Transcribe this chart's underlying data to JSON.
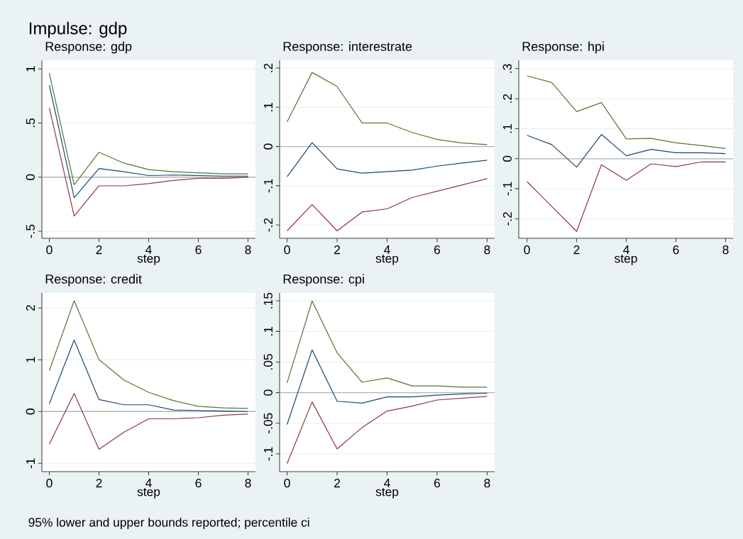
{
  "chart_data": [
    {
      "type": "line",
      "title": "Response: gdp",
      "xlabel": "step",
      "annotations": [
        "Impulse: gdp"
      ],
      "x": [
        0,
        1,
        2,
        3,
        4,
        5,
        6,
        7,
        8
      ],
      "xlim": [
        -0.3,
        8.3
      ],
      "xticks": [
        0,
        2,
        4,
        6,
        8
      ],
      "ylim": [
        -0.565,
        1.08
      ],
      "yticks": [
        {
          "value": -0.5,
          "label": "-.5"
        },
        0,
        {
          "value": 0.5,
          "label": ".5"
        },
        1
      ],
      "grid": "y",
      "ref_lines": [
        {
          "axis": "y",
          "value": 0,
          "color": "#b4b4b4"
        }
      ],
      "series": [
        {
          "color": "#1a476f",
          "values": [
            0.85,
            -0.19,
            0.08,
            0.05,
            0.015,
            0.02,
            0.015,
            0.01,
            0.01
          ]
        },
        {
          "color": "#90353b",
          "values": [
            0.64,
            -0.36,
            -0.08,
            -0.08,
            -0.06,
            -0.03,
            -0.01,
            -0.01,
            0
          ]
        },
        {
          "color": "#55752f",
          "values": [
            0.96,
            -0.07,
            0.23,
            0.13,
            0.07,
            0.05,
            0.04,
            0.03,
            0.03
          ]
        }
      ]
    },
    {
      "type": "line",
      "title": "Response: interestrate",
      "xlabel": "step",
      "x": [
        0,
        1,
        2,
        3,
        4,
        5,
        6,
        7,
        8
      ],
      "xlim": [
        -0.3,
        8.3
      ],
      "xticks": [
        0,
        2,
        4,
        6,
        8
      ],
      "ylim": [
        -0.234,
        0.22
      ],
      "yticks": [
        {
          "value": -0.2,
          "label": "-.2"
        },
        {
          "value": -0.1,
          "label": "-.1"
        },
        0,
        {
          "value": 0.1,
          "label": ".1"
        },
        {
          "value": 0.2,
          "label": ".2"
        }
      ],
      "grid": "y",
      "ref_lines": [
        {
          "axis": "y",
          "value": 0,
          "color": "#b4b4b4"
        }
      ],
      "series": [
        {
          "color": "#1a476f",
          "values": [
            -0.077,
            0.01,
            -0.057,
            -0.068,
            -0.064,
            -0.06,
            -0.05,
            -0.042,
            -0.035
          ]
        },
        {
          "color": "#90353b",
          "values": [
            -0.215,
            -0.148,
            -0.215,
            -0.167,
            -0.159,
            -0.13,
            -0.114,
            -0.098,
            -0.082
          ]
        },
        {
          "color": "#55752f",
          "values": [
            0.063,
            0.189,
            0.153,
            0.06,
            0.06,
            0.036,
            0.018,
            0.009,
            0.005
          ]
        }
      ]
    },
    {
      "type": "line",
      "title": "Response: hpi",
      "xlabel": "step",
      "x": [
        0,
        1,
        2,
        3,
        4,
        5,
        6,
        7,
        8
      ],
      "xlim": [
        -0.33,
        8.3
      ],
      "xticks": [
        0,
        2,
        4,
        6,
        8
      ],
      "ylim": [
        -0.265,
        0.328
      ],
      "yticks": [
        {
          "value": -0.2,
          "label": "-.2"
        },
        {
          "value": -0.1,
          "label": "-.1"
        },
        0,
        {
          "value": 0.1,
          "label": ".1"
        },
        {
          "value": 0.2,
          "label": ".2"
        },
        {
          "value": 0.3,
          "label": ".3"
        }
      ],
      "grid": "y",
      "ref_lines": [
        {
          "axis": "y",
          "value": 0,
          "color": "#b4b4b4"
        }
      ],
      "series": [
        {
          "color": "#1a476f",
          "values": [
            0.078,
            0.047,
            -0.028,
            0.081,
            0.01,
            0.031,
            0.02,
            0.02,
            0.017
          ]
        },
        {
          "color": "#90353b",
          "values": [
            -0.076,
            -0.159,
            -0.242,
            -0.02,
            -0.072,
            -0.017,
            -0.026,
            -0.011,
            -0.011
          ]
        },
        {
          "color": "#55752f",
          "values": [
            0.276,
            0.254,
            0.157,
            0.187,
            0.066,
            0.068,
            0.053,
            0.044,
            0.034
          ]
        }
      ]
    },
    {
      "type": "line",
      "title": "Response: credit",
      "xlabel": "step",
      "annotations": [
        "95% lower and upper bounds reported; percentile ci"
      ],
      "x": [
        0,
        1,
        2,
        3,
        4,
        5,
        6,
        7,
        8
      ],
      "xlim": [
        -0.3,
        8.3
      ],
      "xticks": [
        0,
        2,
        4,
        6,
        8
      ],
      "ylim": [
        -1.16,
        2.29
      ],
      "yticks": [
        -1,
        0,
        1,
        2
      ],
      "grid": "y",
      "ref_lines": [
        {
          "axis": "y",
          "value": 0,
          "color": "#b4b4b4"
        }
      ],
      "series": [
        {
          "color": "#1a476f",
          "values": [
            0.15,
            1.38,
            0.23,
            0.13,
            0.13,
            0.03,
            0.02,
            0.01,
            0
          ]
        },
        {
          "color": "#90353b",
          "values": [
            -0.63,
            0.35,
            -0.73,
            -0.4,
            -0.14,
            -0.14,
            -0.12,
            -0.07,
            -0.05
          ]
        },
        {
          "color": "#55752f",
          "values": [
            0.79,
            2.14,
            1.0,
            0.61,
            0.37,
            0.21,
            0.1,
            0.07,
            0.06
          ]
        }
      ]
    },
    {
      "type": "line",
      "title": "Response: cpi",
      "xlabel": "step",
      "x": [
        0,
        1,
        2,
        3,
        4,
        5,
        6,
        7,
        8
      ],
      "xlim": [
        -0.3,
        8.3
      ],
      "xticks": [
        0,
        2,
        4,
        6,
        8
      ],
      "ylim": [
        -0.129,
        0.163
      ],
      "yticks": [
        {
          "value": -0.1,
          "label": "-.1"
        },
        {
          "value": -0.05,
          "label": "-.05"
        },
        0,
        {
          "value": 0.05,
          "label": ".05"
        },
        {
          "value": 0.1,
          "label": ".1"
        },
        {
          "value": 0.15,
          "label": ".15"
        }
      ],
      "grid": "y",
      "ref_lines": [
        {
          "axis": "y",
          "value": 0,
          "color": "#b4b4b4"
        }
      ],
      "series": [
        {
          "color": "#1a476f",
          "values": [
            -0.052,
            0.07,
            -0.014,
            -0.017,
            -0.007,
            -0.007,
            -0.004,
            -0.002,
            -0.001
          ]
        },
        {
          "color": "#90353b",
          "values": [
            -0.116,
            -0.015,
            -0.092,
            -0.057,
            -0.03,
            -0.022,
            -0.012,
            -0.009,
            -0.006
          ]
        },
        {
          "color": "#55752f",
          "values": [
            0.016,
            0.15,
            0.065,
            0.017,
            0.024,
            0.011,
            0.011,
            0.009,
            0.009
          ]
        }
      ]
    }
  ]
}
